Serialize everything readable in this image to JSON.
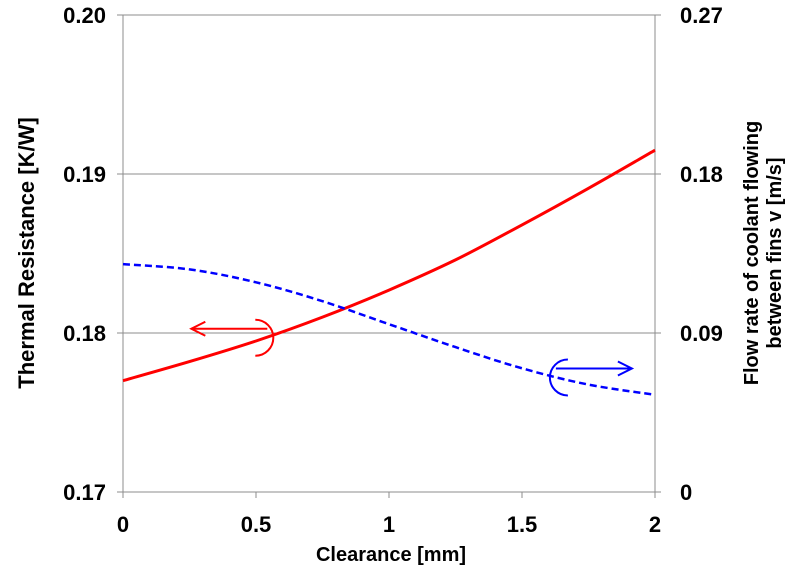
{
  "chart_data": {
    "type": "line",
    "xlabel": "Clearance [mm]",
    "ylabel_left": "Thermal Resistance [K/W]",
    "ylabel_right": [
      "Flow rate of coolant flowing",
      "between fins v [m/s]"
    ],
    "xlim": [
      0,
      2
    ],
    "ylim_left": [
      0.17,
      0.2
    ],
    "ylim_right": [
      0,
      0.27
    ],
    "grid": "horizontal",
    "x_ticks": [
      {
        "value": 0,
        "label": "0"
      },
      {
        "value": 0.5,
        "label": "0.5"
      },
      {
        "value": 1,
        "label": "1"
      },
      {
        "value": 1.5,
        "label": "1.5"
      },
      {
        "value": 2,
        "label": "2"
      }
    ],
    "y_ticks_left": [
      {
        "value": 0.17,
        "label": "0.17"
      },
      {
        "value": 0.18,
        "label": "0.18"
      },
      {
        "value": 0.19,
        "label": "0.19"
      },
      {
        "value": 0.2,
        "label": "0.20"
      }
    ],
    "y_ticks_right": [
      {
        "value": 0,
        "label": "0"
      },
      {
        "value": 0.09,
        "label": "0.09"
      },
      {
        "value": 0.18,
        "label": "0.18"
      },
      {
        "value": 0.27,
        "label": "0.27"
      }
    ],
    "series": [
      {
        "axis": "left",
        "style": "solid",
        "color": "#ff0000",
        "x": [
          0,
          0.25,
          0.5,
          0.75,
          1.0,
          1.25,
          1.5,
          1.75,
          2.0
        ],
        "y": [
          0.177,
          0.1782,
          0.1795,
          0.181,
          0.1827,
          0.1846,
          0.1868,
          0.1891,
          0.1915
        ]
      },
      {
        "axis": "right",
        "style": "dashed",
        "color": "#0000ff",
        "x": [
          0,
          0.25,
          0.5,
          0.75,
          1.0,
          1.25,
          1.5,
          1.75,
          2.0
        ],
        "y": [
          0.129,
          0.126,
          0.1187,
          0.108,
          0.095,
          0.082,
          0.07,
          0.0608,
          0.055
        ]
      }
    ],
    "annotations": [
      {
        "type": "axis-indicator",
        "series": 0,
        "direction": "left",
        "color": "#ff0000",
        "x": 0.52,
        "y": 0.1797
      },
      {
        "type": "axis-indicator",
        "series": 1,
        "direction": "right",
        "color": "#0000ff",
        "x": 1.65,
        "y": 0.0648
      }
    ]
  }
}
